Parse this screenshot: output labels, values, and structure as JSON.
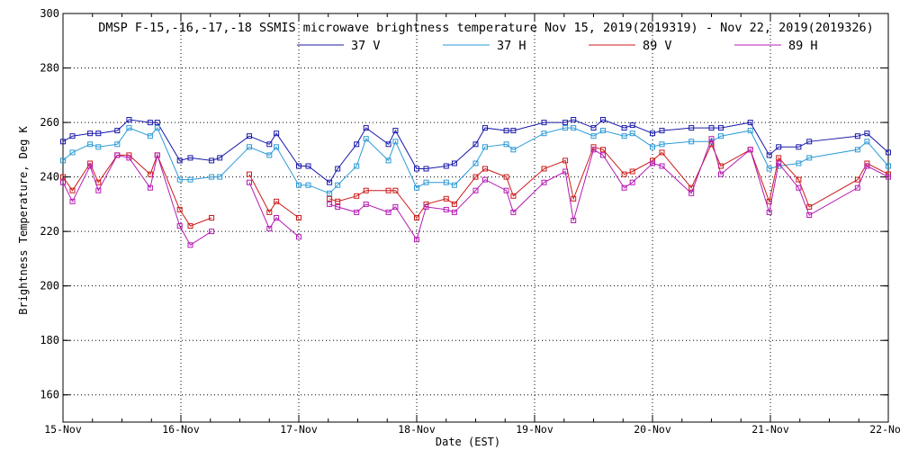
{
  "chart_data": {
    "type": "line",
    "title": "DMSP F-15,-16,-17,-18 SSMIS microwave brightness temperature Nov 15, 2019(2019319) - Nov 22, 2019(2019326)",
    "xlabel": "Date (EST)",
    "ylabel": "Brightness Temperature, Deg K",
    "xlim": [
      0,
      7
    ],
    "ylim": [
      150,
      300
    ],
    "yticks": [
      160,
      180,
      200,
      220,
      240,
      260,
      280,
      300
    ],
    "x_tick_positions": [
      0,
      1,
      2,
      3,
      4,
      5,
      6,
      7
    ],
    "x_tick_labels": [
      "15-Nov",
      "16-Nov",
      "17-Nov",
      "18-Nov",
      "19-Nov",
      "20-Nov",
      "21-Nov",
      "22-Nov"
    ],
    "grid": true,
    "legend_position": "top-center",
    "series": [
      {
        "name": "37 V",
        "color": "#1a1aaa",
        "segments": [
          [
            [
              0.0,
              253
            ],
            [
              0.08,
              255
            ],
            [
              0.23,
              256
            ],
            [
              0.3,
              256
            ],
            [
              0.46,
              257
            ],
            [
              0.56,
              261
            ],
            [
              0.74,
              260
            ],
            [
              0.8,
              260
            ],
            [
              0.99,
              246
            ],
            [
              1.08,
              247
            ],
            [
              1.26,
              246
            ],
            [
              1.33,
              247
            ],
            [
              1.58,
              255
            ],
            [
              1.75,
              252
            ],
            [
              1.81,
              256
            ],
            [
              2.0,
              244
            ],
            [
              2.08,
              244
            ],
            [
              2.26,
              238
            ],
            [
              2.33,
              243
            ],
            [
              2.49,
              252
            ],
            [
              2.57,
              258
            ],
            [
              2.76,
              252
            ],
            [
              2.82,
              257
            ],
            [
              3.0,
              243
            ],
            [
              3.08,
              243
            ],
            [
              3.25,
              244
            ],
            [
              3.32,
              245
            ],
            [
              3.5,
              252
            ],
            [
              3.58,
              258
            ],
            [
              3.76,
              257
            ],
            [
              3.82,
              257
            ],
            [
              4.08,
              260
            ],
            [
              4.26,
              260
            ],
            [
              4.33,
              261
            ],
            [
              4.5,
              258
            ],
            [
              4.58,
              261
            ],
            [
              4.76,
              258
            ],
            [
              4.83,
              259
            ],
            [
              5.0,
              256
            ],
            [
              5.08,
              257
            ],
            [
              5.33,
              258
            ],
            [
              5.5,
              258
            ],
            [
              5.58,
              258
            ],
            [
              5.83,
              260
            ],
            [
              5.99,
              248
            ],
            [
              6.07,
              251
            ],
            [
              6.24,
              251
            ],
            [
              6.33,
              253
            ],
            [
              6.74,
              255
            ],
            [
              6.82,
              256
            ],
            [
              7.0,
              249
            ]
          ]
        ]
      },
      {
        "name": "37 H",
        "color": "#2b9ad6",
        "segments": [
          [
            [
              0.0,
              246
            ],
            [
              0.08,
              249
            ],
            [
              0.23,
              252
            ],
            [
              0.3,
              251
            ],
            [
              0.46,
              252
            ],
            [
              0.56,
              258
            ],
            [
              0.74,
              255
            ],
            [
              0.8,
              258
            ],
            [
              0.99,
              239
            ],
            [
              1.08,
              239
            ],
            [
              1.26,
              240
            ],
            [
              1.33,
              240
            ],
            [
              1.58,
              251
            ],
            [
              1.75,
              248
            ],
            [
              1.81,
              251
            ],
            [
              2.0,
              237
            ],
            [
              2.08,
              237
            ],
            [
              2.26,
              234
            ],
            [
              2.33,
              237
            ],
            [
              2.49,
              244
            ],
            [
              2.57,
              254
            ],
            [
              2.76,
              246
            ],
            [
              2.82,
              253
            ],
            [
              3.0,
              236
            ],
            [
              3.08,
              238
            ],
            [
              3.25,
              238
            ],
            [
              3.32,
              237
            ],
            [
              3.5,
              245
            ],
            [
              3.58,
              251
            ],
            [
              3.76,
              252
            ],
            [
              3.82,
              250
            ],
            [
              4.08,
              256
            ],
            [
              4.26,
              258
            ],
            [
              4.33,
              258
            ],
            [
              4.5,
              255
            ],
            [
              4.58,
              257
            ],
            [
              4.76,
              255
            ],
            [
              4.83,
              256
            ],
            [
              5.0,
              251
            ],
            [
              5.08,
              252
            ],
            [
              5.33,
              253
            ],
            [
              5.5,
              253
            ],
            [
              5.58,
              255
            ],
            [
              5.83,
              257
            ],
            [
              5.99,
              243
            ],
            [
              6.07,
              244
            ],
            [
              6.24,
              245
            ],
            [
              6.33,
              247
            ],
            [
              6.74,
              250
            ],
            [
              6.82,
              253
            ],
            [
              7.0,
              244
            ]
          ]
        ]
      },
      {
        "name": "89 V",
        "color": "#cc1a1a",
        "segments": [
          [
            [
              0.0,
              240
            ],
            [
              0.08,
              235
            ],
            [
              0.23,
              245
            ],
            [
              0.3,
              238
            ],
            [
              0.46,
              248
            ],
            [
              0.56,
              248
            ],
            [
              0.74,
              241
            ],
            [
              0.8,
              248
            ],
            [
              0.99,
              228
            ],
            [
              1.08,
              222
            ],
            [
              1.26,
              225
            ]
          ],
          [
            [
              1.58,
              241
            ],
            [
              1.75,
              227
            ],
            [
              1.81,
              231
            ],
            [
              2.0,
              225
            ]
          ],
          [
            [
              2.26,
              232
            ],
            [
              2.33,
              231
            ],
            [
              2.49,
              233
            ],
            [
              2.57,
              235
            ],
            [
              2.76,
              235
            ],
            [
              2.82,
              235
            ],
            [
              3.0,
              225
            ],
            [
              3.08,
              230
            ],
            [
              3.25,
              232
            ],
            [
              3.32,
              230
            ],
            [
              3.5,
              240
            ],
            [
              3.58,
              243
            ],
            [
              3.76,
              240
            ],
            [
              3.82,
              233
            ],
            [
              4.08,
              243
            ],
            [
              4.26,
              246
            ],
            [
              4.33,
              232
            ],
            [
              4.5,
              251
            ],
            [
              4.58,
              250
            ],
            [
              4.76,
              241
            ],
            [
              4.83,
              242
            ],
            [
              5.0,
              246
            ],
            [
              5.08,
              249
            ],
            [
              5.33,
              236
            ],
            [
              5.5,
              252
            ],
            [
              5.58,
              244
            ],
            [
              5.83,
              250
            ],
            [
              5.99,
              231
            ],
            [
              6.07,
              247
            ],
            [
              6.24,
              239
            ],
            [
              6.33,
              229
            ],
            [
              6.74,
              239
            ],
            [
              6.82,
              245
            ],
            [
              7.0,
              241
            ]
          ]
        ]
      },
      {
        "name": "89 H",
        "color": "#b41ab4",
        "segments": [
          [
            [
              0.0,
              238
            ],
            [
              0.08,
              231
            ],
            [
              0.23,
              244
            ],
            [
              0.3,
              235
            ],
            [
              0.46,
              248
            ],
            [
              0.56,
              247
            ],
            [
              0.74,
              236
            ],
            [
              0.8,
              248
            ],
            [
              0.99,
              222
            ],
            [
              1.08,
              215
            ],
            [
              1.26,
              220
            ]
          ],
          [
            [
              1.58,
              238
            ],
            [
              1.75,
              221
            ],
            [
              1.81,
              225
            ],
            [
              2.0,
              218
            ]
          ],
          [
            [
              2.26,
              230
            ],
            [
              2.33,
              229
            ],
            [
              2.49,
              227
            ],
            [
              2.57,
              230
            ],
            [
              2.76,
              227
            ],
            [
              2.82,
              229
            ],
            [
              3.0,
              217
            ],
            [
              3.08,
              229
            ],
            [
              3.25,
              228
            ],
            [
              3.32,
              227
            ],
            [
              3.5,
              235
            ],
            [
              3.58,
              239
            ],
            [
              3.76,
              235
            ],
            [
              3.82,
              227
            ],
            [
              4.08,
              238
            ],
            [
              4.26,
              242
            ],
            [
              4.33,
              224
            ],
            [
              4.5,
              250
            ],
            [
              4.58,
              248
            ],
            [
              4.76,
              236
            ],
            [
              4.83,
              238
            ],
            [
              5.0,
              245
            ],
            [
              5.08,
              244
            ],
            [
              5.33,
              234
            ],
            [
              5.5,
              254
            ],
            [
              5.58,
              241
            ],
            [
              5.83,
              250
            ],
            [
              5.99,
              227
            ],
            [
              6.07,
              245
            ],
            [
              6.24,
              236
            ],
            [
              6.33,
              226
            ],
            [
              6.74,
              236
            ],
            [
              6.82,
              244
            ],
            [
              7.0,
              240
            ]
          ]
        ]
      }
    ]
  }
}
